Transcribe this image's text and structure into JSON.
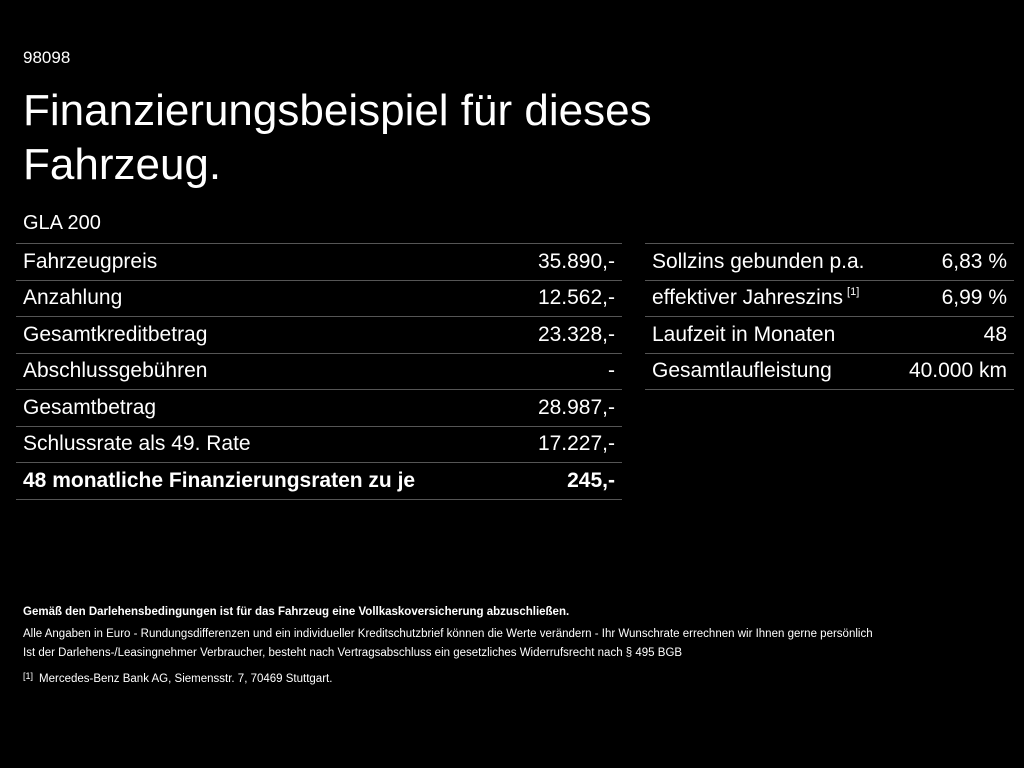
{
  "header": {
    "id": "98098",
    "title": "Finanzierungsbeispiel für dieses Fahrzeug.",
    "model": "GLA 200"
  },
  "left_table": {
    "rows": [
      [
        "Fahrzeugpreis",
        "35.890,-"
      ],
      [
        "Anzahlung",
        "12.562,-"
      ],
      [
        "Gesamtkreditbetrag",
        "23.328,-"
      ],
      [
        "Abschlussgebühren",
        "-"
      ],
      [
        "Gesamtbetrag",
        "28.987,-"
      ],
      [
        "Schlussrate als 49. Rate",
        "17.227,-"
      ],
      [
        "48 monatliche Finanzierungsraten zu je",
        "245,-"
      ]
    ]
  },
  "right_table": {
    "rows": [
      {
        "label": "Sollzins gebunden p.a.",
        "value": "6,83 %"
      },
      {
        "label": "effektiver Jahreszins",
        "note": "[1]",
        "value": "6,99 %"
      },
      {
        "label": "Laufzeit in Monaten",
        "value": "48"
      },
      {
        "label": "Gesamtlaufleistung",
        "value": "40.000 km"
      }
    ]
  },
  "footer": {
    "notes": [
      "Gemäß den Darlehensbedingungen ist für das Fahrzeug eine Vollkaskoversicherung abzuschließen.",
      "Alle Angaben in Euro - Rundungsdifferenzen und ein individueller Kreditschutzbrief können die Werte verändern - Ihr Wunschrate errechnen wir Ihnen gerne persönlich",
      "Ist der Darlehens-/Leasingnehmer Verbraucher, besteht nach Vertragsabschluss ein gesetzliches Widerrufsrecht nach § 495 BGB"
    ],
    "footnote": {
      "marker": "[1]",
      "text": "Mercedes-Benz Bank AG, Siemensstr. 7, 70469 Stuttgart."
    }
  }
}
